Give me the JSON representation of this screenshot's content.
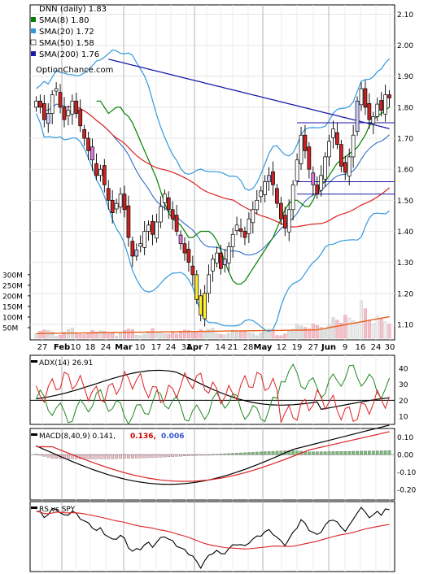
{
  "chart_data": [
    {
      "panel": "price",
      "type": "candlestick",
      "title": "DNN (daily) 1.83",
      "watermark": "OptionChance.com",
      "y_ticks": [
        "2.10",
        "2.00",
        "1.90",
        "1.80",
        "1.70",
        "1.60",
        "1.50",
        "1.40",
        "1.30",
        "1.20",
        "1.10"
      ],
      "ylim": [
        1.05,
        2.13
      ],
      "x_ticks": [
        "27",
        "Feb",
        "10",
        "18",
        "24",
        "Mar",
        "10",
        "17",
        "24",
        "31",
        "Apr",
        "7",
        "14",
        "21",
        "28",
        "May",
        "12",
        "19",
        "27",
        "Jun",
        "9",
        "16",
        "24",
        "30"
      ],
      "legend": [
        {
          "label": "DNN (daily) 1.83",
          "color": "#000000"
        },
        {
          "label": "SMA(8) 1.80",
          "color": "#008000"
        },
        {
          "label": "SMA(20) 1.72",
          "color": "#3399dd"
        },
        {
          "label": "SMA(50) 1.58",
          "color": "#ffffff"
        },
        {
          "label": "SMA(200) 1.76",
          "color": "#1a1aa6"
        }
      ],
      "close": [
        1.82,
        1.8,
        1.76,
        1.78,
        1.84,
        1.86,
        1.8,
        1.76,
        1.79,
        1.82,
        1.78,
        1.74,
        1.7,
        1.66,
        1.63,
        1.58,
        1.6,
        1.55,
        1.5,
        1.46,
        1.49,
        1.52,
        1.47,
        1.38,
        1.32,
        1.34,
        1.36,
        1.4,
        1.42,
        1.39,
        1.43,
        1.48,
        1.52,
        1.47,
        1.44,
        1.4,
        1.36,
        1.33,
        1.3,
        1.26,
        1.18,
        1.13,
        1.2,
        1.26,
        1.31,
        1.33,
        1.28,
        1.31,
        1.35,
        1.39,
        1.42,
        1.4,
        1.38,
        1.44,
        1.47,
        1.5,
        1.53,
        1.56,
        1.58,
        1.55,
        1.49,
        1.44,
        1.41,
        1.47,
        1.55,
        1.63,
        1.71,
        1.66,
        1.6,
        1.55,
        1.52,
        1.58,
        1.64,
        1.69,
        1.73,
        1.68,
        1.61,
        1.59,
        1.64,
        1.71,
        1.82,
        1.86,
        1.8,
        1.76,
        1.77,
        1.81,
        1.79,
        1.84,
        1.83
      ],
      "sma8": [
        1.82,
        1.82,
        1.8,
        1.78,
        1.79,
        1.8,
        1.8,
        1.78,
        1.77,
        1.75,
        1.72,
        1.69,
        1.66,
        1.63,
        1.6,
        1.57,
        1.53,
        1.49,
        1.46,
        1.44,
        1.43,
        1.42,
        1.4,
        1.38,
        1.38,
        1.39,
        1.4,
        1.4,
        1.4,
        1.39,
        1.37,
        1.34,
        1.3,
        1.27,
        1.24,
        1.23,
        1.23,
        1.24,
        1.26,
        1.28,
        1.3,
        1.32,
        1.34,
        1.36,
        1.38,
        1.41,
        1.44,
        1.47,
        1.49,
        1.5,
        1.5,
        1.49,
        1.48,
        1.48,
        1.5,
        1.53,
        1.55,
        1.56,
        1.58,
        1.6,
        1.62,
        1.63,
        1.64,
        1.65,
        1.66,
        1.67,
        1.69,
        1.71,
        1.74,
        1.76,
        1.77,
        1.78,
        1.79,
        1.8
      ]
    },
    {
      "panel": "volume",
      "type": "bar",
      "y_ticks": [
        "300M",
        "250M",
        "200M",
        "150M",
        "100M",
        "50M"
      ],
      "ylim": [
        0,
        330
      ]
    },
    {
      "panel": "adx",
      "type": "line",
      "label": "ADX(14) 26.91",
      "y_ticks": [
        "40",
        "30",
        "20",
        "10"
      ],
      "ylim": [
        5,
        48
      ],
      "reference_line": 20
    },
    {
      "panel": "macd",
      "type": "line",
      "label": "MACD(8,40,9) 0.141,",
      "signal_label": "0.136,",
      "hist_label": "0.006",
      "y_ticks": [
        "0.10",
        "0.00",
        "-0.10",
        "-0.20"
      ],
      "ylim": [
        -0.26,
        0.15
      ]
    },
    {
      "panel": "rs",
      "type": "line",
      "label": "RS vs SPY",
      "y_ticks": []
    }
  ]
}
